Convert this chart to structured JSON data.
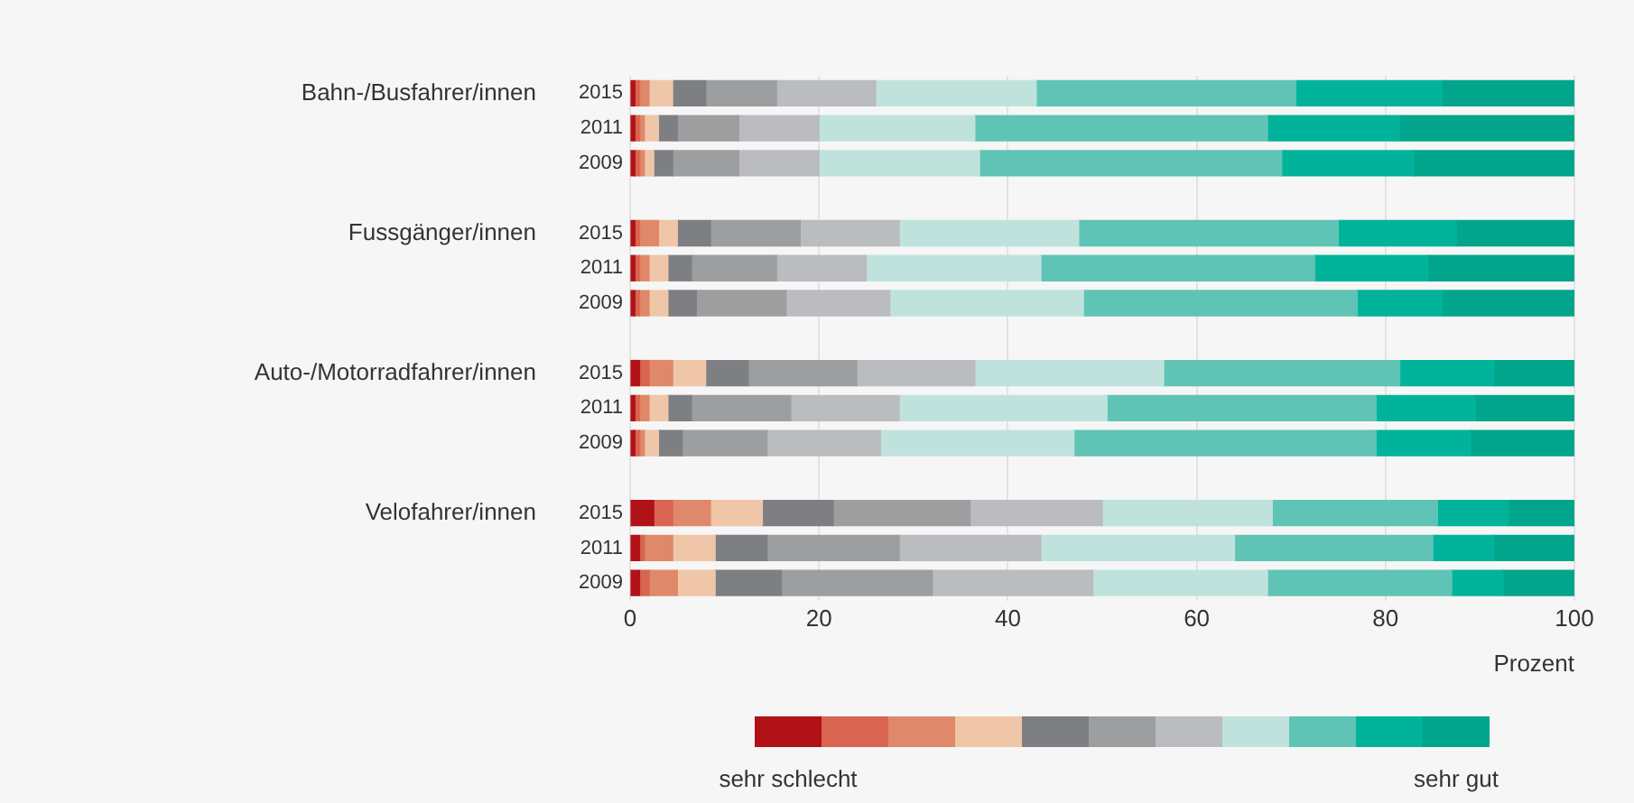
{
  "chart_data": {
    "type": "bar",
    "orientation": "horizontal",
    "stacked": true,
    "categories": [
      "2015",
      "2011",
      "2009",
      null,
      "2015",
      "2011",
      "2009",
      null,
      "2015",
      "2011",
      "2009",
      null,
      "2015",
      "2011",
      "2009"
    ],
    "annotations": [
      "Bahn-/Busfahrer/innen",
      "Fussgänger/innen",
      "Auto-/Motorradfahrer/innen",
      "Velofahrer/innen"
    ],
    "xlabel": "Prozent",
    "xlim": [
      0,
      100
    ],
    "xticks": [
      0,
      20,
      40,
      60,
      80,
      100
    ],
    "grid": "x",
    "legend": "bottom",
    "series": [
      {
        "name": "sehr schlecht",
        "color": "#b01218",
        "values": [
          0.5,
          0.5,
          0.5,
          null,
          0.5,
          0.5,
          0.5,
          null,
          1,
          0.5,
          0.5,
          null,
          2.5,
          1,
          1
        ]
      },
      {
        "color": "#d96550",
        "values": [
          0.5,
          0.5,
          0.5,
          null,
          0.5,
          0.5,
          0.5,
          null,
          1,
          0.5,
          0.5,
          null,
          2,
          0.5,
          1
        ]
      },
      {
        "color": "#e0886a",
        "values": [
          1,
          0.5,
          0.5,
          null,
          2,
          1,
          1,
          null,
          2.5,
          1,
          0.5,
          null,
          4,
          3,
          3
        ]
      },
      {
        "color": "#f0c6a8",
        "values": [
          2.5,
          1.5,
          1,
          null,
          2,
          2,
          2,
          null,
          3.5,
          2,
          1.5,
          null,
          5.5,
          4.5,
          4
        ]
      },
      {
        "color": "#7e7f83",
        "values": [
          3.5,
          2,
          2,
          null,
          3.5,
          2.5,
          3,
          null,
          4.5,
          2.5,
          2.5,
          null,
          7.5,
          5.5,
          7
        ]
      },
      {
        "color": "#9d9ea0",
        "values": [
          7.5,
          6.5,
          7,
          null,
          9.5,
          9,
          9.5,
          null,
          11.5,
          10.5,
          9,
          null,
          14.5,
          14,
          16
        ]
      },
      {
        "color": "#bbbcbf",
        "values": [
          10.5,
          8.5,
          8.5,
          null,
          10.5,
          9.5,
          11,
          null,
          12.5,
          11.5,
          12,
          null,
          14,
          15,
          17
        ]
      },
      {
        "color": "#bfe3dc",
        "values": [
          17,
          16.5,
          17,
          null,
          19,
          18.5,
          20.5,
          null,
          20,
          22,
          20.5,
          null,
          18,
          20.5,
          18.5
        ]
      },
      {
        "color": "#5fc4b5",
        "values": [
          27.5,
          31,
          32,
          null,
          27.5,
          29,
          29,
          null,
          25,
          28.5,
          32,
          null,
          17.5,
          21,
          19.5
        ]
      },
      {
        "color": "#00b39a",
        "values": [
          15.5,
          14,
          14,
          null,
          12.5,
          12,
          9,
          null,
          10,
          10.5,
          10,
          null,
          7.5,
          6.5,
          5.5
        ]
      },
      {
        "name": "sehr gut",
        "color": "#00a58c",
        "values": [
          14,
          18.5,
          17,
          null,
          12.5,
          15.5,
          14,
          null,
          8.5,
          10.5,
          11,
          null,
          7,
          8.5,
          7.5
        ]
      }
    ]
  }
}
